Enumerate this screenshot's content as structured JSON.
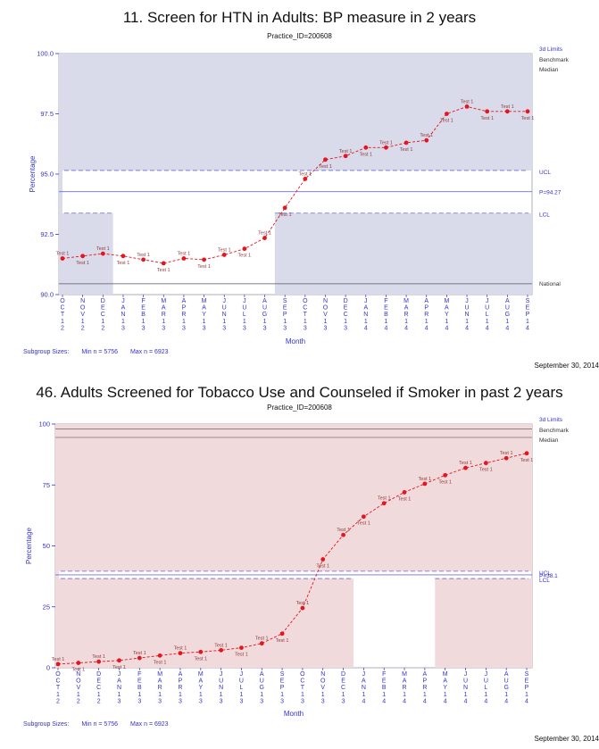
{
  "chart_data": [
    {
      "type": "line",
      "title": "11. Screen for HTN in Adults: BP measure in 2 years",
      "subtitle": "Practice_ID=200608",
      "xlabel": "Month",
      "ylabel": "Percentage",
      "ylim": [
        90.0,
        100.0
      ],
      "yticks": [
        "90.0",
        "92.5",
        "95.0",
        "97.5",
        "100.0"
      ],
      "categories": [
        "OCT12",
        "NOV12",
        "DEC12",
        "JAN13",
        "FEB13",
        "MAR13",
        "APR13",
        "MAY13",
        "JUN13",
        "JUL13",
        "AUG13",
        "SEP13",
        "OCT13",
        "NOV13",
        "DEC13",
        "JAN14",
        "FEB14",
        "MAR14",
        "APR14",
        "MAY14",
        "JUN14",
        "JUL14",
        "AUG14",
        "SEP14"
      ],
      "values": [
        91.5,
        91.6,
        91.7,
        91.6,
        91.45,
        91.3,
        91.5,
        91.45,
        91.65,
        91.9,
        92.35,
        93.6,
        94.8,
        95.6,
        95.75,
        96.1,
        96.1,
        96.3,
        96.4,
        97.5,
        97.8,
        97.6,
        97.6,
        97.6
      ],
      "point_label": "Test 1",
      "center_value": 94.27,
      "center_label": "P=94.27",
      "ucl_segments": [
        {
          "from": 0,
          "to": 23,
          "value": 95.15
        }
      ],
      "lcl_segments": [
        {
          "from": 0,
          "to": 2,
          "value": 93.38
        },
        {
          "from": 11,
          "to": 23,
          "value": 93.38
        }
      ],
      "benchmark": 100.0,
      "median": 100.0,
      "national": 90.45,
      "right_labels": {
        "limits": "3d Limits",
        "benchmark": "Benchmark",
        "median": "Median",
        "ucl": "UCL",
        "center": "P=94.27",
        "lcl": "LCL",
        "national": "National"
      },
      "shade_color": "#d9daea",
      "line_color": "#3333cc",
      "point_color": "#e6141e",
      "subgroup_label": "Subgroup Sizes:",
      "min_n": "Min n = 5756",
      "max_n": "Max n = 6923",
      "date": "September 30, 2014"
    },
    {
      "type": "line",
      "title": "46. Adults Screened for Tobacco Use and Counseled if Smoker in past 2 years",
      "subtitle": "Practice_ID=200608",
      "xlabel": "Month",
      "ylabel": "Percentage",
      "ylim": [
        0,
        100
      ],
      "yticks": [
        "0",
        "25",
        "50",
        "75",
        "100"
      ],
      "categories": [
        "OCT12",
        "NOV12",
        "DEC12",
        "JAN13",
        "FEB13",
        "MAR13",
        "APR13",
        "MAY13",
        "JUN13",
        "JUL13",
        "AUG13",
        "SEP13",
        "OCT13",
        "NOV13",
        "DEC13",
        "JAN14",
        "FEB14",
        "MAR14",
        "APR14",
        "MAY14",
        "JUN14",
        "JUL14",
        "AUG14",
        "SEP14"
      ],
      "values": [
        1.5,
        2.0,
        2.5,
        3.0,
        4.0,
        5.0,
        6.0,
        6.5,
        7.2,
        8.2,
        10.0,
        14.0,
        24.5,
        44.5,
        54.5,
        62.0,
        67.5,
        72.0,
        75.5,
        79.0,
        82.0,
        84.0,
        86.0,
        88.0
      ],
      "point_label": "Test 1",
      "center_value": 38.1,
      "center_label": "P=38.1",
      "ucl_segments": [
        {
          "from": 0,
          "to": 23,
          "value": 39.6
        }
      ],
      "lcl_segments": [
        {
          "from": 0,
          "to": 14,
          "value": 36.6
        },
        {
          "from": 19,
          "to": 23,
          "value": 36.6
        }
      ],
      "benchmark": 98.0,
      "median": 94.5,
      "right_labels": {
        "limits": "3d Limits",
        "benchmark": "Benchmark",
        "median": "Median",
        "ucl": "UCL",
        "center": "P=38.1",
        "lcl": "LCL"
      },
      "shade_color": "#f0dadc",
      "line_color": "#3333cc",
      "point_color": "#e6141e",
      "subgroup_label": "Subgroup Sizes:",
      "min_n": "Min n = 5756",
      "max_n": "Max n = 6923",
      "date": "September 30, 2014"
    }
  ]
}
